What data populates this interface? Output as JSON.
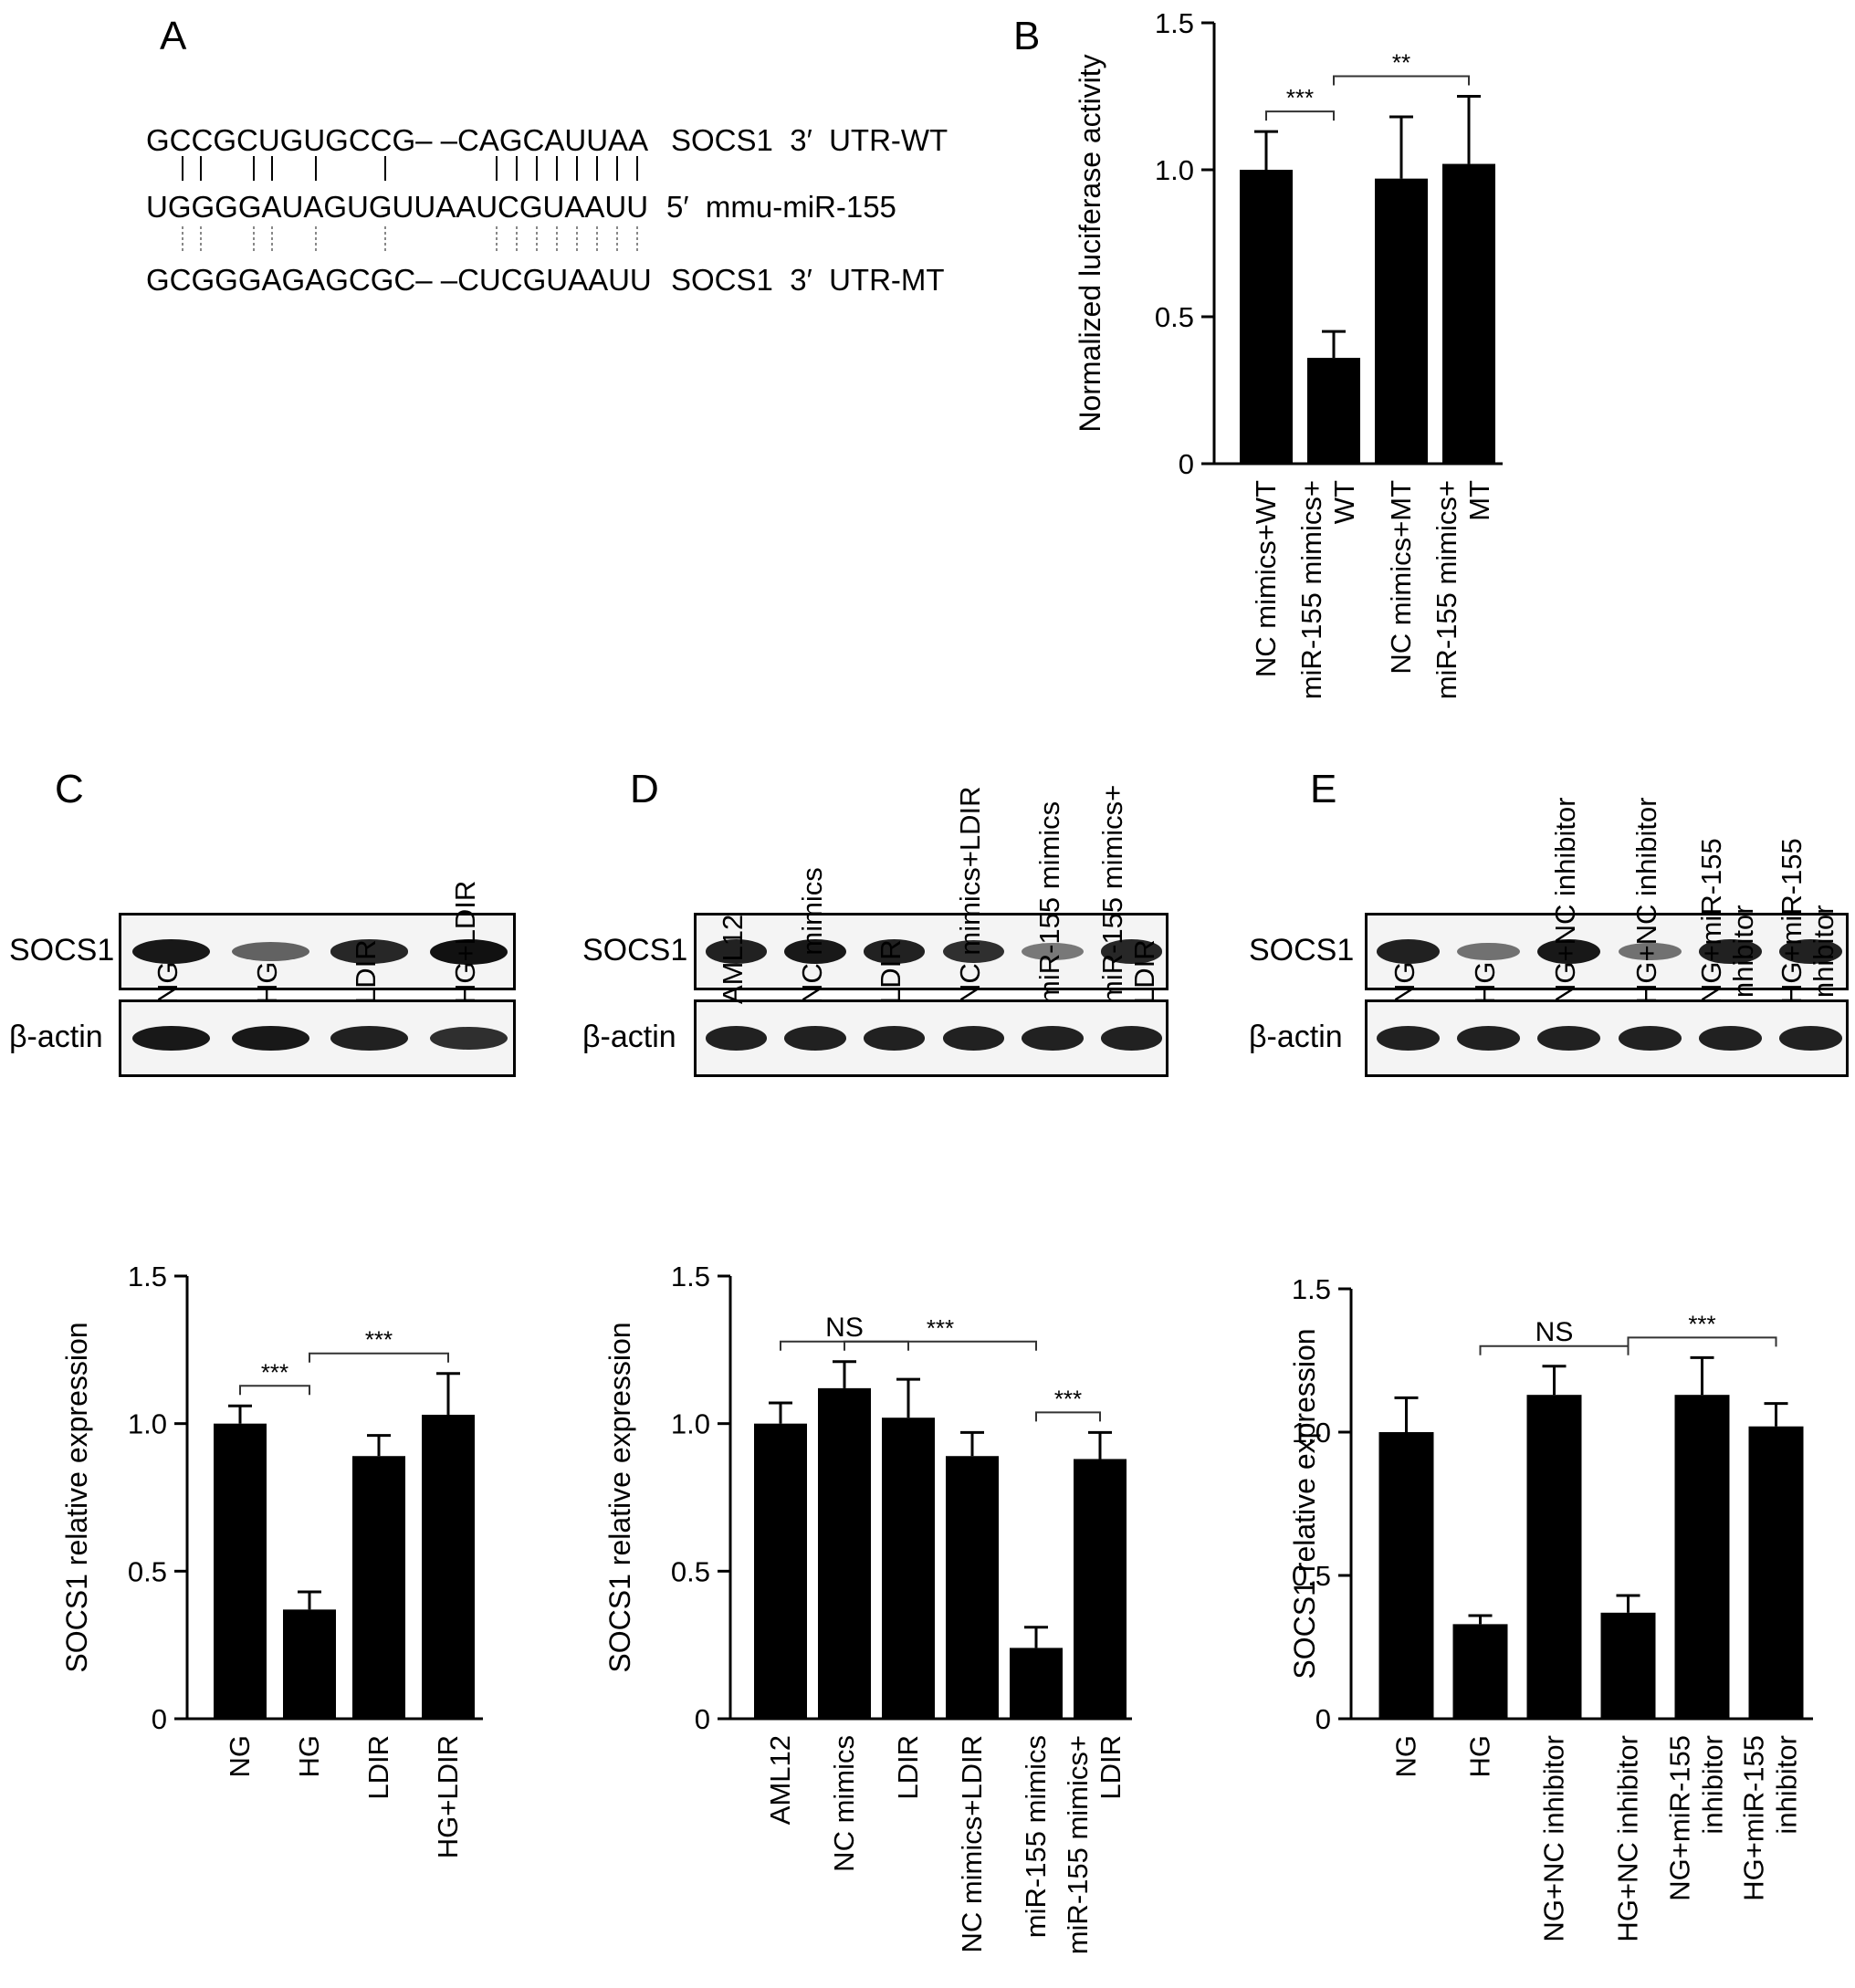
{
  "panel_letters": [
    "A",
    "B",
    "C",
    "D",
    "E"
  ],
  "panel_a": {
    "rows": [
      {
        "seq": "GCCGCUGUGCCG– –CAGCAUUAA",
        "label": "SOCS1  3′  UTR-WT"
      },
      {
        "seq": "UGGGGAUAGUGUUAAUCGUAAUU",
        "label": "5′  mmu-miR-155"
      },
      {
        "seq": "GCGGGAGAGCGC– –CUCGUAAUU",
        "label": "SOCS1  3′  UTR-MT"
      }
    ]
  },
  "blots": {
    "C": {
      "lanes": [
        "NG",
        "HG",
        "LDIR",
        "HG+LDIR"
      ],
      "rows": [
        "SOCS1",
        "β-actin"
      ],
      "socs1_intensity": [
        0.95,
        0.45,
        0.85,
        1.0
      ],
      "actin_intensity": [
        0.95,
        0.95,
        0.9,
        0.8
      ]
    },
    "D": {
      "lanes": [
        "AML12",
        "NC mimics",
        "LDIR",
        "NC mimics+LDIR",
        "miR-155 mimics",
        "miR-155 mimics+\nLDIR"
      ],
      "rows": [
        "SOCS1",
        "β-actin"
      ],
      "socs1_intensity": [
        0.9,
        0.95,
        0.9,
        0.8,
        0.3,
        0.85
      ],
      "actin_intensity": [
        0.9,
        0.9,
        0.9,
        0.9,
        0.9,
        0.9
      ]
    },
    "E": {
      "lanes": [
        "NG",
        "HG",
        "NG+NC inhibitor",
        "HG+NC inhibitor",
        "NG+miR-155\ninhibitor",
        "HG+miR-155\ninhibitor"
      ],
      "rows": [
        "SOCS1",
        "β-actin"
      ],
      "socs1_intensity": [
        0.9,
        0.35,
        0.95,
        0.35,
        0.9,
        0.9
      ],
      "actin_intensity": [
        0.9,
        0.9,
        0.9,
        0.9,
        0.9,
        0.9
      ]
    }
  },
  "colors": {
    "bar": "#000000",
    "axis": "#000000",
    "bracket": "#333333"
  },
  "chart_data": [
    {
      "id": "B",
      "type": "bar",
      "ylabel": "Normalized luciferase activity",
      "ylim": [
        0,
        1.5
      ],
      "yticks": [
        "0",
        "0.5",
        "1.0",
        "1.5"
      ],
      "categories": [
        "NC mimics+WT",
        "miR-155 mimics+\nWT",
        "NC mimics+MT",
        "miR-155 mimics+\nMT"
      ],
      "values": [
        1.0,
        0.36,
        0.97,
        1.02
      ],
      "errors": [
        0.13,
        0.09,
        0.21,
        0.23
      ],
      "brackets": [
        {
          "from": 0,
          "to": 1,
          "label": "***"
        },
        {
          "from": 1,
          "to": 3,
          "label": "**"
        }
      ]
    },
    {
      "id": "C",
      "type": "bar",
      "ylabel": "SOCS1 relative expression",
      "ylim": [
        0,
        1.5
      ],
      "yticks": [
        "0",
        "0.5",
        "1.0",
        "1.5"
      ],
      "categories": [
        "NG",
        "HG",
        "LDIR",
        "HG+LDIR"
      ],
      "values": [
        1.0,
        0.37,
        0.89,
        1.03
      ],
      "errors": [
        0.06,
        0.06,
        0.07,
        0.14
      ],
      "brackets": [
        {
          "from": 0,
          "to": 1,
          "label": "***"
        },
        {
          "from": 1,
          "to": 3,
          "label": "***"
        }
      ]
    },
    {
      "id": "D",
      "type": "bar",
      "ylabel": "SOCS1 relative expression",
      "ylim": [
        0,
        1.5
      ],
      "yticks": [
        "0",
        "0.5",
        "1.0",
        "1.5"
      ],
      "categories": [
        "AML12",
        "NC mimics",
        "LDIR",
        "NC mimics+LDIR",
        "miR-155 mimics",
        "miR-155 mimics+\nLDIR"
      ],
      "values": [
        1.0,
        1.12,
        1.02,
        0.89,
        0.24,
        0.88
      ],
      "errors": [
        0.07,
        0.09,
        0.13,
        0.08,
        0.07,
        0.09
      ],
      "brackets": [
        {
          "from": 0,
          "to": 2,
          "label": "NS"
        },
        {
          "from": 1,
          "to": 4,
          "label": "***"
        },
        {
          "from": 4,
          "to": 5,
          "label": "***"
        }
      ]
    },
    {
      "id": "E",
      "type": "bar",
      "ylabel": "SOCS1 relative expression",
      "ylim": [
        0,
        1.5
      ],
      "yticks": [
        "0",
        "0.5",
        "1.0",
        "1.5"
      ],
      "categories": [
        "NG",
        "HG",
        "NG+NC inhibitor",
        "HG+NC inhibitor",
        "NG+miR-155\ninhibitor",
        "HG+miR-155\ninhibitor"
      ],
      "values": [
        1.0,
        0.33,
        1.13,
        0.37,
        1.13,
        1.02
      ],
      "errors": [
        0.12,
        0.03,
        0.1,
        0.06,
        0.13,
        0.08
      ],
      "brackets": [
        {
          "from": 1,
          "to": 3,
          "label": "NS"
        },
        {
          "from": 3,
          "to": 5,
          "label": "***"
        }
      ]
    }
  ]
}
